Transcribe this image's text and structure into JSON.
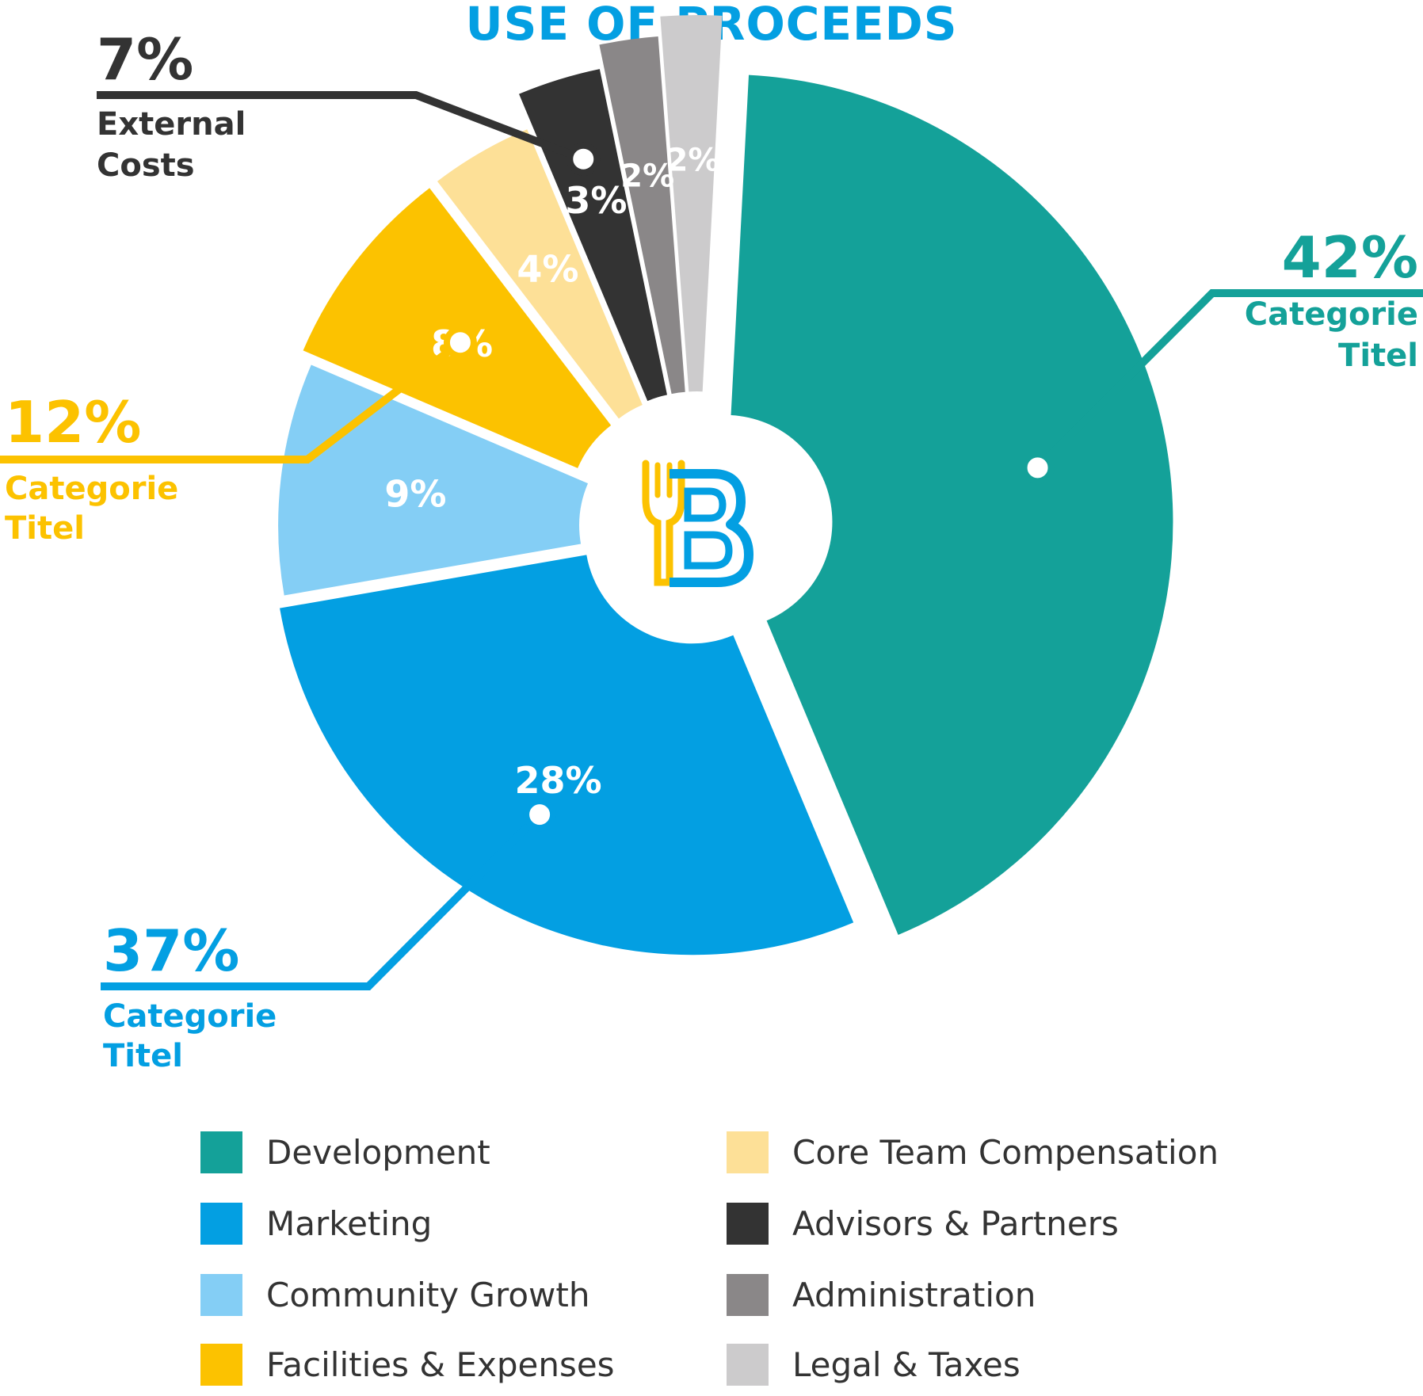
{
  "chart_data": {
    "type": "pie",
    "title": "USE OF PROCEEDS",
    "slices": [
      {
        "name": "Development",
        "value": 42,
        "label": "",
        "color": "#14a199"
      },
      {
        "name": "Marketing",
        "value": 28,
        "label": "28%",
        "color": "#039fe2"
      },
      {
        "name": "Community Growth",
        "value": 9,
        "label": "9%",
        "color": "#84cef5"
      },
      {
        "name": "Facilities & Expenses",
        "value": 8,
        "label": "8%",
        "color": "#fcc200"
      },
      {
        "name": "Core Team Compensation",
        "value": 4,
        "label": "4%",
        "color": "#fde097"
      },
      {
        "name": "Advisors & Partners",
        "value": 3,
        "label": "3%",
        "color": "#333333"
      },
      {
        "name": "Administration",
        "value": 2,
        "label": "2%",
        "color": "#8a8788"
      },
      {
        "name": "Legal & Taxes",
        "value": 2,
        "label": "2%",
        "color": "#cccbcc"
      }
    ],
    "groups": [
      {
        "id": "teal",
        "pct": "42%",
        "category": [
          "Categorie",
          "Titel"
        ],
        "color": "#14a199",
        "members": [
          "Development"
        ]
      },
      {
        "id": "blue",
        "pct": "37%",
        "category": [
          "Categorie",
          "Titel"
        ],
        "color": "#039fe2",
        "members": [
          "Marketing",
          "Community Growth"
        ]
      },
      {
        "id": "yellow",
        "pct": "12%",
        "category": [
          "Categorie",
          "Titel"
        ],
        "color": "#fcc200",
        "members": [
          "Facilities & Expenses",
          "Core Team Compensation"
        ]
      },
      {
        "id": "dark",
        "pct": "7%",
        "category": [
          "External",
          "Costs"
        ],
        "color": "#333333",
        "members": [
          "Advisors & Partners",
          "Administration",
          "Legal & Taxes"
        ]
      }
    ],
    "legend": {
      "placement": "bottom",
      "columns": [
        [
          "Development",
          "Marketing",
          "Community Growth",
          "Facilities & Expenses"
        ],
        [
          "Core Team Compensation",
          "Advisors & Partners",
          "Administration",
          "Legal & Taxes"
        ]
      ]
    }
  },
  "colors": {
    "title": "#039fe2",
    "logo_fork": "#fcc200",
    "logo_letter": "#039fe2",
    "legend_text": "#333333"
  },
  "logo": {
    "icon": "fork-b-logo-icon"
  }
}
